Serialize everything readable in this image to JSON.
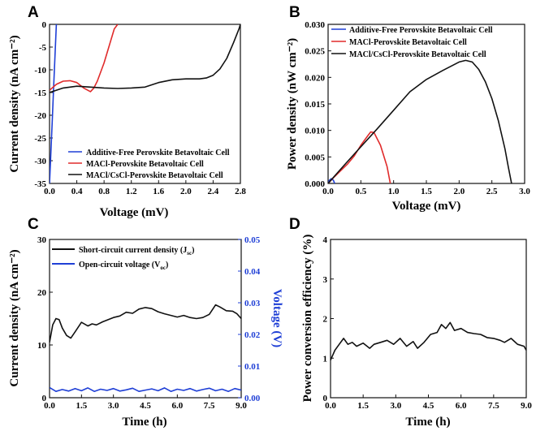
{
  "chart_data": [
    {
      "panel": "A",
      "type": "line",
      "xlabel": "Voltage (mV)",
      "ylabel": "Current density (nA cm⁻²)",
      "xlim": [
        0,
        2.8
      ],
      "ylim": [
        -35,
        0
      ],
      "xticks": [
        "0.0",
        "0.4",
        "0.8",
        "1.2",
        "1.6",
        "2.0",
        "2.4",
        "2.8"
      ],
      "yticks": [
        "0",
        "-5",
        "-10",
        "-15",
        "-20",
        "-25",
        "-30",
        "-35"
      ],
      "legend_position": "bottom-right",
      "series": [
        {
          "name": "Additive-Free Perovskite Betavoltaic Cell",
          "color": "#1f3fd6",
          "x": [
            0.0,
            0.02,
            0.04,
            0.06,
            0.08,
            0.1
          ],
          "y": [
            -35,
            -28,
            -21,
            -14,
            -7,
            0
          ]
        },
        {
          "name": "MACl-Perovskite Betavoltaic Cell",
          "color": "#e02b2b",
          "x": [
            0.0,
            0.1,
            0.2,
            0.3,
            0.4,
            0.5,
            0.6,
            0.65,
            0.7,
            0.8,
            0.9,
            0.95,
            1.0
          ],
          "y": [
            -14.5,
            -13.2,
            -12.5,
            -12.4,
            -12.8,
            -14.0,
            -14.8,
            -14.0,
            -12.5,
            -8.5,
            -3.5,
            -1.0,
            0.0
          ]
        },
        {
          "name": "MACl/CsCl-Perovskite Betavoltaic Cell",
          "color": "#111111",
          "x": [
            0.0,
            0.2,
            0.4,
            0.6,
            0.8,
            1.0,
            1.2,
            1.4,
            1.6,
            1.8,
            2.0,
            2.2,
            2.3,
            2.4,
            2.5,
            2.6,
            2.7,
            2.78,
            2.8
          ],
          "y": [
            -15.0,
            -14.0,
            -13.6,
            -13.8,
            -14.0,
            -14.1,
            -14.0,
            -13.8,
            -12.8,
            -12.2,
            -12.0,
            -12.0,
            -11.8,
            -11.2,
            -9.8,
            -7.5,
            -4.0,
            -1.0,
            0.0
          ]
        }
      ]
    },
    {
      "panel": "B",
      "type": "line",
      "xlabel": "Voltage (mV)",
      "ylabel": "Power density (nW cm⁻²)",
      "xlim": [
        0,
        3.0
      ],
      "ylim": [
        0,
        0.03
      ],
      "xticks": [
        "0.0",
        "0.5",
        "1.0",
        "1.5",
        "2.0",
        "2.5",
        "3.0"
      ],
      "yticks": [
        "0.000",
        "0.005",
        "0.010",
        "0.015",
        "0.020",
        "0.025",
        "0.030"
      ],
      "legend_position": "top-left",
      "series": [
        {
          "name": "Additive-Free Perovskite Betavoltaic Cell",
          "color": "#1f3fd6",
          "x": [
            0.0,
            0.02,
            0.05,
            0.08,
            0.1
          ],
          "y": [
            0.0,
            0.0006,
            0.0009,
            0.0006,
            0.0
          ]
        },
        {
          "name": "MACl-Perovskite Betavoltaic Cell",
          "color": "#e02b2b",
          "x": [
            0.0,
            0.1,
            0.2,
            0.3,
            0.4,
            0.5,
            0.6,
            0.65,
            0.7,
            0.8,
            0.9,
            0.95
          ],
          "y": [
            0.0,
            0.0013,
            0.0025,
            0.0037,
            0.0052,
            0.0072,
            0.0089,
            0.0097,
            0.0096,
            0.0072,
            0.0032,
            0.0
          ]
        },
        {
          "name": "MACl/CsCl-Perovskite Betavoltaic Cell",
          "color": "#111111",
          "x": [
            0.0,
            0.25,
            0.5,
            0.75,
            1.0,
            1.25,
            1.5,
            1.75,
            2.0,
            2.1,
            2.2,
            2.3,
            2.4,
            2.5,
            2.6,
            2.7,
            2.75,
            2.8
          ],
          "y": [
            0.0,
            0.0035,
            0.0069,
            0.0103,
            0.0138,
            0.0173,
            0.0196,
            0.0213,
            0.0229,
            0.0232,
            0.0229,
            0.0215,
            0.0192,
            0.016,
            0.0118,
            0.0065,
            0.0032,
            0.0
          ]
        }
      ]
    },
    {
      "panel": "C",
      "type": "line",
      "xlabel": "Time (h)",
      "ylabel": "Current density (nA cm⁻²)",
      "y2label": "Voltage (V)",
      "xlim": [
        0,
        9.0
      ],
      "ylim": [
        0,
        30
      ],
      "y2lim": [
        0,
        0.05
      ],
      "xticks": [
        "0.0",
        "1.5",
        "3.0",
        "4.5",
        "6.0",
        "7.5",
        "9.0"
      ],
      "yticks": [
        "0",
        "10",
        "20",
        "30"
      ],
      "y2ticks": [
        "0.00",
        "0.01",
        "0.02",
        "0.03",
        "0.04",
        "0.05"
      ],
      "legend_position": "top-left",
      "series": [
        {
          "name": "Short-circuit current density (J",
          "sub": "sc",
          "suffix": ")",
          "color": "#111111",
          "axis": "left",
          "x": [
            0.0,
            0.15,
            0.3,
            0.45,
            0.6,
            0.8,
            1.0,
            1.2,
            1.5,
            1.8,
            2.0,
            2.2,
            2.5,
            3.0,
            3.3,
            3.6,
            3.9,
            4.2,
            4.5,
            4.8,
            5.1,
            5.4,
            5.7,
            6.0,
            6.3,
            6.6,
            6.9,
            7.2,
            7.5,
            7.8,
            8.0,
            8.3,
            8.6,
            8.8,
            9.0
          ],
          "y": [
            10.5,
            13.8,
            15.0,
            14.8,
            13.2,
            11.8,
            11.3,
            12.5,
            14.3,
            13.6,
            14.0,
            13.8,
            14.4,
            15.2,
            15.5,
            16.2,
            16.0,
            16.8,
            17.1,
            16.9,
            16.3,
            15.9,
            15.6,
            15.3,
            15.6,
            15.2,
            15.0,
            15.2,
            15.8,
            17.6,
            17.2,
            16.5,
            16.4,
            15.9,
            15.0
          ]
        },
        {
          "name": "Open-circuit voltage (V",
          "sub": "oc",
          "suffix": ")",
          "color": "#1f3fd6",
          "axis": "right",
          "x": [
            0.0,
            0.3,
            0.6,
            0.9,
            1.2,
            1.5,
            1.8,
            2.1,
            2.4,
            2.7,
            3.0,
            3.3,
            3.6,
            3.9,
            4.2,
            4.5,
            4.8,
            5.1,
            5.4,
            5.7,
            6.0,
            6.3,
            6.6,
            6.9,
            7.2,
            7.5,
            7.8,
            8.1,
            8.4,
            8.7,
            9.0
          ],
          "y": [
            0.0032,
            0.002,
            0.0026,
            0.0021,
            0.0029,
            0.0022,
            0.0031,
            0.002,
            0.0027,
            0.0023,
            0.0029,
            0.0021,
            0.0025,
            0.003,
            0.002,
            0.0024,
            0.0028,
            0.0022,
            0.0031,
            0.002,
            0.0027,
            0.0023,
            0.0029,
            0.0021,
            0.0026,
            0.003,
            0.0022,
            0.0027,
            0.002,
            0.0029,
            0.0024
          ]
        }
      ]
    },
    {
      "panel": "D",
      "type": "line",
      "xlabel": "Time (h)",
      "ylabel": "Power conversion efficiency (%)",
      "xlim": [
        0,
        9.0
      ],
      "ylim": [
        0,
        4
      ],
      "xticks": [
        "0.0",
        "1.5",
        "3.0",
        "4.5",
        "6.0",
        "7.5",
        "9.0"
      ],
      "yticks": [
        "0",
        "1",
        "2",
        "3",
        "4"
      ],
      "series": [
        {
          "color": "#111111",
          "x": [
            0.0,
            0.2,
            0.4,
            0.6,
            0.8,
            1.0,
            1.2,
            1.5,
            1.8,
            2.0,
            2.3,
            2.6,
            2.9,
            3.2,
            3.5,
            3.8,
            4.0,
            4.3,
            4.6,
            4.9,
            5.1,
            5.3,
            5.5,
            5.7,
            6.0,
            6.3,
            6.6,
            6.9,
            7.2,
            7.5,
            7.8,
            8.0,
            8.3,
            8.6,
            8.9,
            9.0
          ],
          "y": [
            0.95,
            1.2,
            1.35,
            1.5,
            1.35,
            1.4,
            1.3,
            1.38,
            1.25,
            1.35,
            1.4,
            1.45,
            1.35,
            1.5,
            1.3,
            1.42,
            1.25,
            1.4,
            1.6,
            1.65,
            1.85,
            1.75,
            1.9,
            1.7,
            1.75,
            1.65,
            1.62,
            1.6,
            1.52,
            1.5,
            1.45,
            1.4,
            1.5,
            1.35,
            1.3,
            1.2
          ]
        }
      ]
    }
  ],
  "panel_letters": [
    "A",
    "B",
    "C",
    "D"
  ],
  "legend_a": [
    "Additive-Free Perovskite Betavoltaic Cell",
    "MACl-Perovskite Betavoltaic Cell",
    "MACl/CsCl-Perovskite Betavoltaic Cell"
  ],
  "legend_b": [
    "Additive-Free Perovskite Betavoltaic Cell",
    "MACl-Perovskite Betavoltaic Cell",
    "MACl/CsCl-Perovskite Betavoltaic Cell"
  ],
  "legend_c": [
    {
      "text": "Short-circuit current density (J",
      "sub": "sc",
      "suffix": ")"
    },
    {
      "text": "Open-circuit voltage (V",
      "sub": "oc",
      "suffix": ")"
    }
  ],
  "colors": {
    "blue": "#1f3fd6",
    "red": "#e02b2b",
    "black": "#111111",
    "right_axis": "#1f3fd6"
  }
}
